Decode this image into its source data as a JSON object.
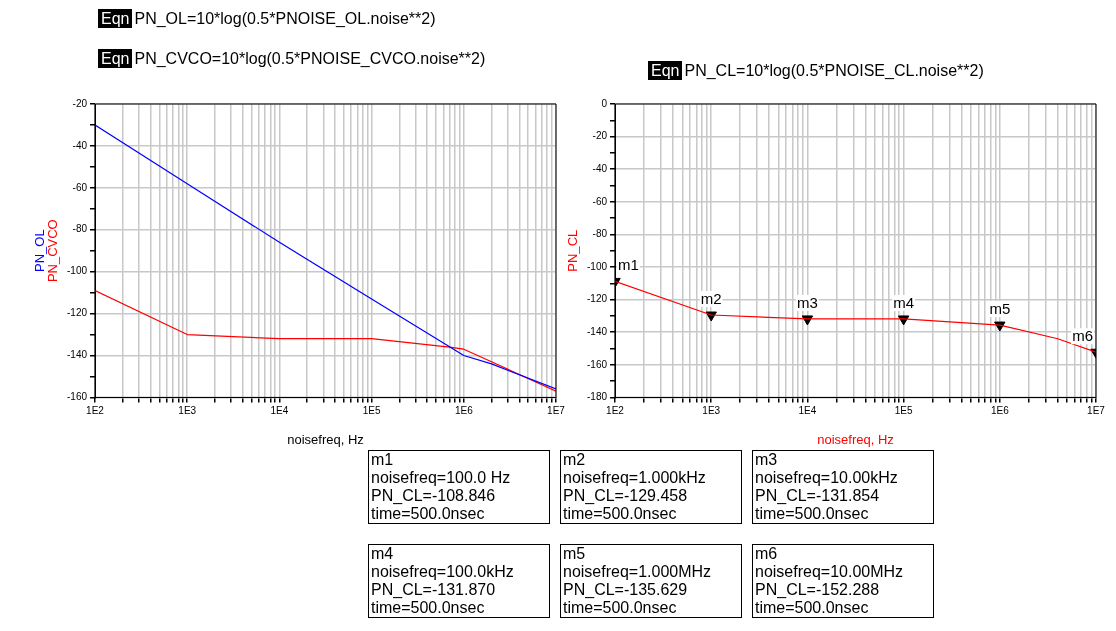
{
  "chart_data": [
    {
      "type": "line",
      "xlabel": "noisefreq, Hz",
      "log": "x",
      "grid": true,
      "xlim": [
        100,
        10000000
      ],
      "ylim": [
        -160,
        -20
      ],
      "xticks": [
        {
          "value": 100,
          "label": "1E2"
        },
        {
          "value": 200,
          "label": null
        },
        {
          "value": 300,
          "label": null
        },
        {
          "value": 400,
          "label": null
        },
        {
          "value": 500,
          "label": null
        },
        {
          "value": 600,
          "label": null
        },
        {
          "value": 700,
          "label": null
        },
        {
          "value": 800,
          "label": null
        },
        {
          "value": 900,
          "label": null
        },
        {
          "value": 1000,
          "label": "1E3"
        },
        {
          "value": 2000,
          "label": null
        },
        {
          "value": 3000,
          "label": null
        },
        {
          "value": 4000,
          "label": null
        },
        {
          "value": 5000,
          "label": null
        },
        {
          "value": 6000,
          "label": null
        },
        {
          "value": 7000,
          "label": null
        },
        {
          "value": 8000,
          "label": null
        },
        {
          "value": 9000,
          "label": null
        },
        {
          "value": 10000,
          "label": "1E4"
        },
        {
          "value": 20000,
          "label": null
        },
        {
          "value": 30000,
          "label": null
        },
        {
          "value": 40000,
          "label": null
        },
        {
          "value": 50000,
          "label": null
        },
        {
          "value": 60000,
          "label": null
        },
        {
          "value": 70000,
          "label": null
        },
        {
          "value": 80000,
          "label": null
        },
        {
          "value": 90000,
          "label": null
        },
        {
          "value": 100000,
          "label": "1E5"
        },
        {
          "value": 200000,
          "label": null
        },
        {
          "value": 300000,
          "label": null
        },
        {
          "value": 400000,
          "label": null
        },
        {
          "value": 500000,
          "label": null
        },
        {
          "value": 600000,
          "label": null
        },
        {
          "value": 700000,
          "label": null
        },
        {
          "value": 800000,
          "label": null
        },
        {
          "value": 900000,
          "label": null
        },
        {
          "value": 1000000,
          "label": "1E6"
        },
        {
          "value": 2000000,
          "label": null
        },
        {
          "value": 3000000,
          "label": null
        },
        {
          "value": 4000000,
          "label": null
        },
        {
          "value": 5000000,
          "label": null
        },
        {
          "value": 6000000,
          "label": null
        },
        {
          "value": 7000000,
          "label": null
        },
        {
          "value": 8000000,
          "label": null
        },
        {
          "value": 9000000,
          "label": null
        },
        {
          "value": 10000000,
          "label": "1E7"
        }
      ],
      "yticks": [
        -160,
        {
          "value": -150,
          "label": null
        },
        -140,
        {
          "value": -130,
          "label": null
        },
        -120,
        {
          "value": -110,
          "label": null
        },
        -100,
        {
          "value": -90,
          "label": null
        },
        -80,
        {
          "value": -70,
          "label": null
        },
        -60,
        {
          "value": -50,
          "label": null
        },
        -40,
        {
          "value": -30,
          "label": null
        },
        -20
      ],
      "annotations": [
        "Eqn PN_OL=10*log(0.5*PNOISE_OL.noise**2)",
        "Eqn PN_CVCO=10*log(0.5*PNOISE_CVCO.noise**2)"
      ],
      "series": [
        {
          "name": "PN_OL",
          "type": "line",
          "color": "#0000ff",
          "x": [
            100,
            1000,
            10000,
            100000,
            1000000,
            2000000,
            10000000
          ],
          "values": [
            -30,
            -58,
            -86,
            -113,
            -140,
            -144,
            -156
          ]
        },
        {
          "name": "PN_CVCO",
          "type": "line",
          "color": "#ff0000",
          "x": [
            100,
            1000,
            10000,
            100000,
            700000,
            1000000,
            10000000
          ],
          "values": [
            -109,
            -130,
            -132,
            -132,
            -136,
            -137,
            -157
          ]
        }
      ]
    },
    {
      "type": "line",
      "xlabel": "noisefreq, Hz",
      "log": "x",
      "grid": true,
      "xlim": [
        100,
        10000000
      ],
      "ylim": [
        -180,
        0
      ],
      "xticks": [
        {
          "value": 100,
          "label": "1E2"
        },
        {
          "value": 200,
          "label": null
        },
        {
          "value": 300,
          "label": null
        },
        {
          "value": 400,
          "label": null
        },
        {
          "value": 500,
          "label": null
        },
        {
          "value": 600,
          "label": null
        },
        {
          "value": 700,
          "label": null
        },
        {
          "value": 800,
          "label": null
        },
        {
          "value": 900,
          "label": null
        },
        {
          "value": 1000,
          "label": "1E3"
        },
        {
          "value": 2000,
          "label": null
        },
        {
          "value": 3000,
          "label": null
        },
        {
          "value": 4000,
          "label": null
        },
        {
          "value": 5000,
          "label": null
        },
        {
          "value": 6000,
          "label": null
        },
        {
          "value": 7000,
          "label": null
        },
        {
          "value": 8000,
          "label": null
        },
        {
          "value": 9000,
          "label": null
        },
        {
          "value": 10000,
          "label": "1E4"
        },
        {
          "value": 20000,
          "label": null
        },
        {
          "value": 30000,
          "label": null
        },
        {
          "value": 40000,
          "label": null
        },
        {
          "value": 50000,
          "label": null
        },
        {
          "value": 60000,
          "label": null
        },
        {
          "value": 70000,
          "label": null
        },
        {
          "value": 80000,
          "label": null
        },
        {
          "value": 90000,
          "label": null
        },
        {
          "value": 100000,
          "label": "1E5"
        },
        {
          "value": 200000,
          "label": null
        },
        {
          "value": 300000,
          "label": null
        },
        {
          "value": 400000,
          "label": null
        },
        {
          "value": 500000,
          "label": null
        },
        {
          "value": 600000,
          "label": null
        },
        {
          "value": 700000,
          "label": null
        },
        {
          "value": 800000,
          "label": null
        },
        {
          "value": 900000,
          "label": null
        },
        {
          "value": 1000000,
          "label": "1E6"
        },
        {
          "value": 2000000,
          "label": null
        },
        {
          "value": 3000000,
          "label": null
        },
        {
          "value": 4000000,
          "label": null
        },
        {
          "value": 5000000,
          "label": null
        },
        {
          "value": 6000000,
          "label": null
        },
        {
          "value": 7000000,
          "label": null
        },
        {
          "value": 8000000,
          "label": null
        },
        {
          "value": 9000000,
          "label": null
        },
        {
          "value": 10000000,
          "label": "1E7"
        }
      ],
      "yticks": [
        -180,
        {
          "value": -170,
          "label": null
        },
        -160,
        {
          "value": -150,
          "label": null
        },
        -140,
        {
          "value": -130,
          "label": null
        },
        -120,
        {
          "value": -110,
          "label": null
        },
        -100,
        {
          "value": -90,
          "label": null
        },
        -80,
        {
          "value": -70,
          "label": null
        },
        -60,
        {
          "value": -50,
          "label": null
        },
        -40,
        {
          "value": -30,
          "label": null
        },
        -20,
        {
          "value": -10,
          "label": null
        },
        0
      ],
      "annotations": [
        "Eqn PN_CL=10*log(0.5*PNOISE_CL.noise**2)",
        "m1\nnoisefreq=100.0 Hz\nPN_CL=-108.846\ntime=500.0nsec",
        "m2\nnoisefreq=1.000kHz\nPN_CL=-129.458\ntime=500.0nsec",
        "m3\nnoisefreq=10.00kHz\nPN_CL=-131.854\ntime=500.0nsec",
        "m4\nnoisefreq=100.0kHz\nPN_CL=-131.870\ntime=500.0nsec",
        "m5\nnoisefreq=1.000MHz\nPN_CL=-135.629\ntime=500.0nsec",
        "m6\nnoisefreq=10.00MHz\nPN_CL=-152.288\ntime=500.0nsec"
      ],
      "series": [
        {
          "name": "PN_CL",
          "type": "line",
          "color": "#ff0000",
          "x": [
            100,
            1000,
            10000,
            100000,
            1000000,
            4000000,
            10000000
          ],
          "values": [
            -108.846,
            -129.458,
            -131.854,
            -131.87,
            -135.629,
            -144,
            -152.288
          ]
        },
        {
          "type": "scatter",
          "marker": "triangle",
          "color": "#000000",
          "x": [
            100,
            1000,
            10000,
            100000,
            1000000,
            10000000
          ],
          "values": [
            -108.846,
            -129.458,
            -131.854,
            -131.87,
            -135.629,
            -152.288
          ],
          "value_labels": [
            "m1",
            "m2",
            "m3",
            "m4",
            "m5",
            "m6"
          ]
        }
      ]
    }
  ]
}
